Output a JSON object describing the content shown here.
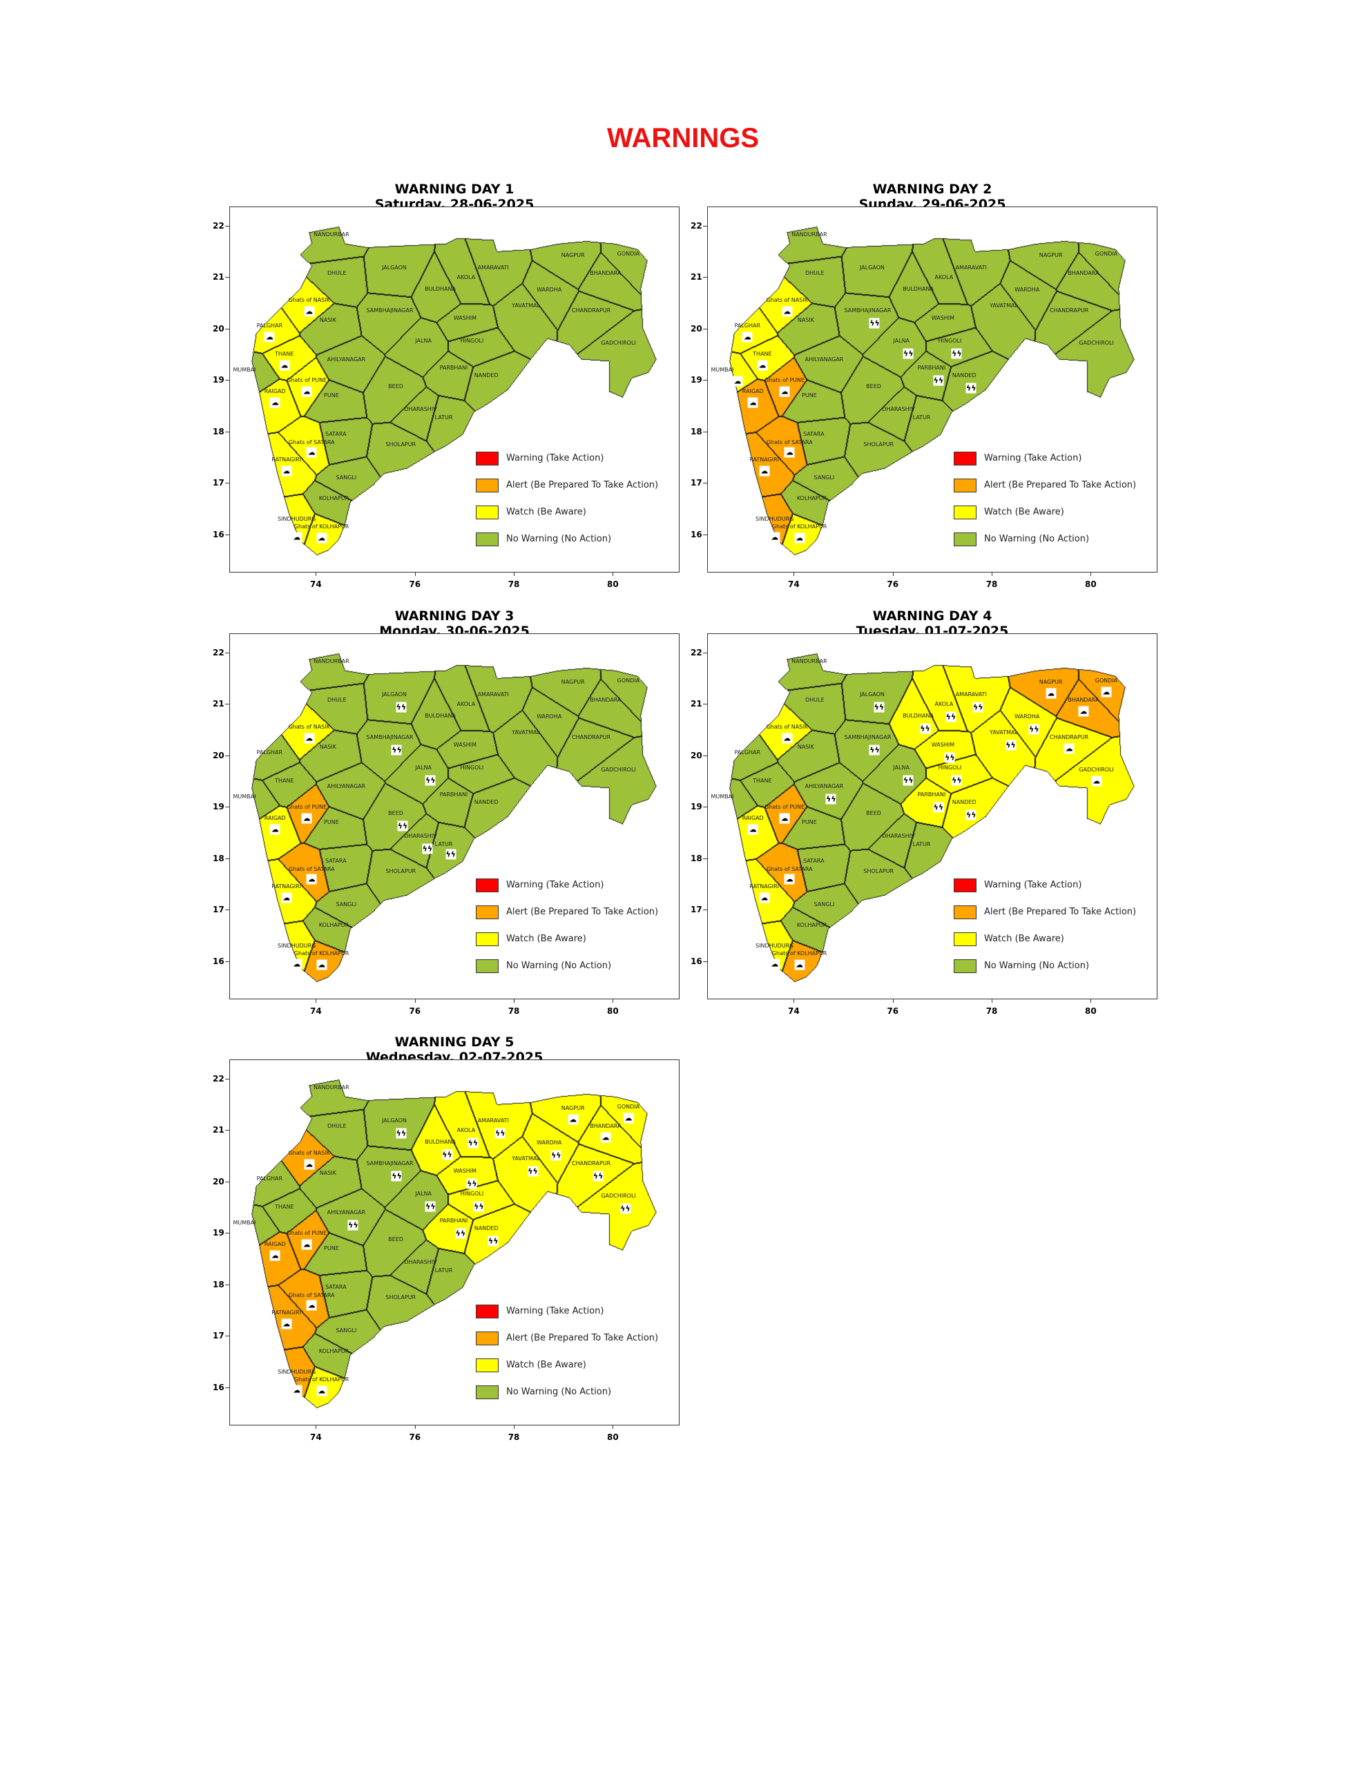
{
  "title": "WARNINGS",
  "legend": [
    {
      "key": "warning",
      "label": "Warning (Take Action)",
      "color": "#ff0000"
    },
    {
      "key": "alert",
      "label": "Alert (Be Prepared To Take Action)",
      "color": "#ffa500"
    },
    {
      "key": "watch",
      "label": "Watch (Be Aware)",
      "color": "#ffff00"
    },
    {
      "key": "none",
      "label": "No Warning (No Action)",
      "color": "#9dc23a"
    }
  ],
  "axes": {
    "x_ticks": [
      "74",
      "76",
      "78",
      "80"
    ],
    "y_ticks": [
      "22",
      "21",
      "20",
      "19",
      "18",
      "17",
      "16"
    ]
  },
  "districts": [
    "NANDURBAR",
    "DHULE",
    "JALGAON",
    "BULDHANA",
    "AKOLA",
    "AMARAVATI",
    "NAGPUR",
    "GONDIA",
    "BHANDARA",
    "WARDHA",
    "YAVATMAL",
    "CHANDRAPUR",
    "GADCHIROLI",
    "WASHIM",
    "HINGOLI",
    "SAMBHAJINAGAR",
    "NASIK",
    "JALNA",
    "AHILYANAGAR",
    "PARBHANI",
    "NANDED",
    "BEED",
    "DHARASHIV",
    "LATUR",
    "PUNE",
    "SATARA",
    "SHOLAPUR",
    "SANGLI",
    "KOLHAPUR",
    "PALGHAR",
    "THANE",
    "MUMBAI",
    "RAIGAD",
    "RATNAGIRI",
    "SINDHUDURG",
    "Ghats of NASIK",
    "Ghats of PUNE",
    "Ghats of SATARA",
    "Ghats of KOLHAPUR"
  ],
  "days": [
    {
      "title": "WARNING DAY 1",
      "date": "Saturday, 28-06-2025",
      "alert": [],
      "watch": [
        "PALGHAR",
        "THANE",
        "RAIGAD",
        "RATNAGIRI",
        "SINDHUDURG",
        "Ghats of NASIK",
        "Ghats of PUNE",
        "Ghats of SATARA",
        "Ghats of KOLHAPUR"
      ],
      "rain_icons": [
        "Ghats of NASIK",
        "PALGHAR",
        "THANE",
        "Ghats of PUNE",
        "RAIGAD",
        "Ghats of SATARA",
        "RATNAGIRI",
        "SINDHUDURG",
        "Ghats of KOLHAPUR"
      ],
      "thunder_icons": []
    },
    {
      "title": "WARNING DAY 2",
      "date": "Sunday, 29-06-2025",
      "alert": [
        "RAIGAD",
        "RATNAGIRI",
        "SINDHUDURG",
        "Ghats of PUNE",
        "Ghats of SATARA"
      ],
      "watch": [
        "PALGHAR",
        "THANE",
        "MUMBAI",
        "Ghats of NASIK",
        "Ghats of KOLHAPUR"
      ],
      "rain_icons": [
        "Ghats of NASIK",
        "PALGHAR",
        "THANE",
        "MUMBAI",
        "Ghats of PUNE",
        "RAIGAD",
        "Ghats of SATARA",
        "RATNAGIRI",
        "SINDHUDURG",
        "Ghats of KOLHAPUR"
      ],
      "thunder_icons": [
        "SAMBHAJINAGAR",
        "JALNA",
        "PARBHANI",
        "HINGOLI",
        "NANDED"
      ]
    },
    {
      "title": "WARNING DAY 3",
      "date": "Monday, 30-06-2025",
      "alert": [
        "Ghats of PUNE",
        "Ghats of SATARA",
        "Ghats of KOLHAPUR"
      ],
      "watch": [
        "RAIGAD",
        "RATNAGIRI",
        "SINDHUDURG",
        "Ghats of NASIK"
      ],
      "rain_icons": [
        "Ghats of NASIK",
        "Ghats of PUNE",
        "RAIGAD",
        "Ghats of SATARA",
        "RATNAGIRI",
        "SINDHUDURG",
        "Ghats of KOLHAPUR"
      ],
      "thunder_icons": [
        "JALGAON",
        "SAMBHAJINAGAR",
        "JALNA",
        "BEED",
        "DHARASHIV",
        "LATUR"
      ]
    },
    {
      "title": "WARNING DAY 4",
      "date": "Tuesday, 01-07-2025",
      "alert": [
        "Ghats of PUNE",
        "Ghats of SATARA",
        "Ghats of KOLHAPUR",
        "NAGPUR",
        "GONDIA",
        "BHANDARA"
      ],
      "watch": [
        "RAIGAD",
        "RATNAGIRI",
        "SINDHUDURG",
        "Ghats of NASIK",
        "BULDHANA",
        "AKOLA",
        "AMARAVATI",
        "WASHIM",
        "HINGOLI",
        "YAVATMAL",
        "WARDHA",
        "CHANDRAPUR",
        "GADCHIROLI",
        "NANDED",
        "PARBHANI"
      ],
      "rain_icons": [
        "Ghats of NASIK",
        "Ghats of PUNE",
        "RAIGAD",
        "Ghats of SATARA",
        "RATNAGIRI",
        "SINDHUDURG",
        "Ghats of KOLHAPUR",
        "NAGPUR",
        "BHANDARA",
        "GONDIA",
        "CHANDRAPUR",
        "GADCHIROLI"
      ],
      "thunder_icons": [
        "JALGAON",
        "BULDHANA",
        "AKOLA",
        "AMARAVATI",
        "WARDHA",
        "WASHIM",
        "YAVATMAL",
        "SAMBHAJINAGAR",
        "JALNA",
        "HINGOLI",
        "PARBHANI",
        "NANDED",
        "AHILYANAGAR"
      ]
    },
    {
      "title": "WARNING DAY 5",
      "date": "Wednesday, 02-07-2025",
      "alert": [
        "Ghats of NASIK",
        "RAIGAD",
        "Ghats of PUNE",
        "Ghats of SATARA",
        "RATNAGIRI",
        "SINDHUDURG"
      ],
      "watch": [
        "Ghats of KOLHAPUR",
        "BULDHANA",
        "AKOLA",
        "AMARAVATI",
        "WASHIM",
        "HINGOLI",
        "PARBHANI",
        "NANDED",
        "YAVATMAL",
        "WARDHA",
        "NAGPUR",
        "BHANDARA",
        "GONDIA",
        "CHANDRAPUR",
        "GADCHIROLI"
      ],
      "rain_icons": [
        "Ghats of NASIK",
        "Ghats of PUNE",
        "RAIGAD",
        "Ghats of SATARA",
        "RATNAGIRI",
        "SINDHUDURG",
        "Ghats of KOLHAPUR",
        "NAGPUR",
        "BHANDARA",
        "GONDIA"
      ],
      "thunder_icons": [
        "JALGAON",
        "AMARAVATI",
        "BULDHANA",
        "AKOLA",
        "WARDHA",
        "WASHIM",
        "YAVATMAL",
        "CHANDRAPUR",
        "GADCHIROLI",
        "SAMBHAJINAGAR",
        "JALNA",
        "HINGOLI",
        "PARBHANI",
        "NANDED",
        "AHILYANAGAR"
      ]
    }
  ]
}
